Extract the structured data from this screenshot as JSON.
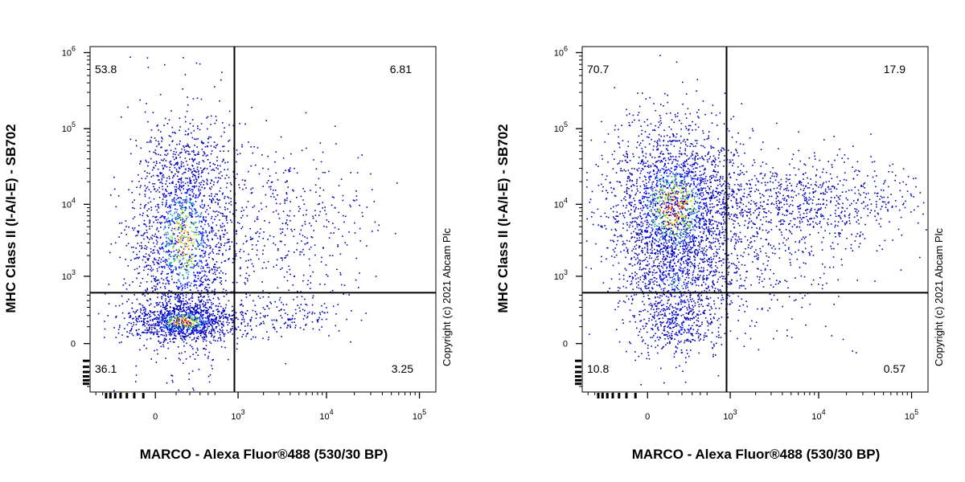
{
  "chart_data": [
    {
      "type": "scatter",
      "xlabel": "MARCO - Alexa Fluor®488 (530/30 BP)",
      "ylabel": "MHC Class II (I-A/I-E) - SB702",
      "x_scale": "biexponential",
      "y_scale": "biexponential",
      "x_ticks": [
        "0",
        "10^3",
        "10^4",
        "10^5"
      ],
      "y_ticks": [
        "0",
        "10^3",
        "10^4",
        "10^5",
        "10^6"
      ],
      "gate": {
        "x": 900,
        "y": 550
      },
      "quadrant_percentages": {
        "top_left": "53.8",
        "top_right": "6.81",
        "bottom_left": "36.1",
        "bottom_right": "3.25"
      },
      "copyright": "Copyright (c) 2021 Abcam Plc"
    },
    {
      "type": "scatter",
      "xlabel": "MARCO - Alexa Fluor®488 (530/30 BP)",
      "ylabel": "MHC Class II (I-A/I-E) - SB702",
      "x_scale": "biexponential",
      "y_scale": "biexponential",
      "x_ticks": [
        "0",
        "10^3",
        "10^4",
        "10^5"
      ],
      "y_ticks": [
        "0",
        "10^3",
        "10^4",
        "10^5",
        "10^6"
      ],
      "gate": {
        "x": 900,
        "y": 550
      },
      "quadrant_percentages": {
        "top_left": "70.7",
        "top_right": "17.9",
        "bottom_left": "10.8",
        "bottom_right": "0.57"
      },
      "copyright": "Copyright (c) 2021 Abcam Plc"
    }
  ]
}
